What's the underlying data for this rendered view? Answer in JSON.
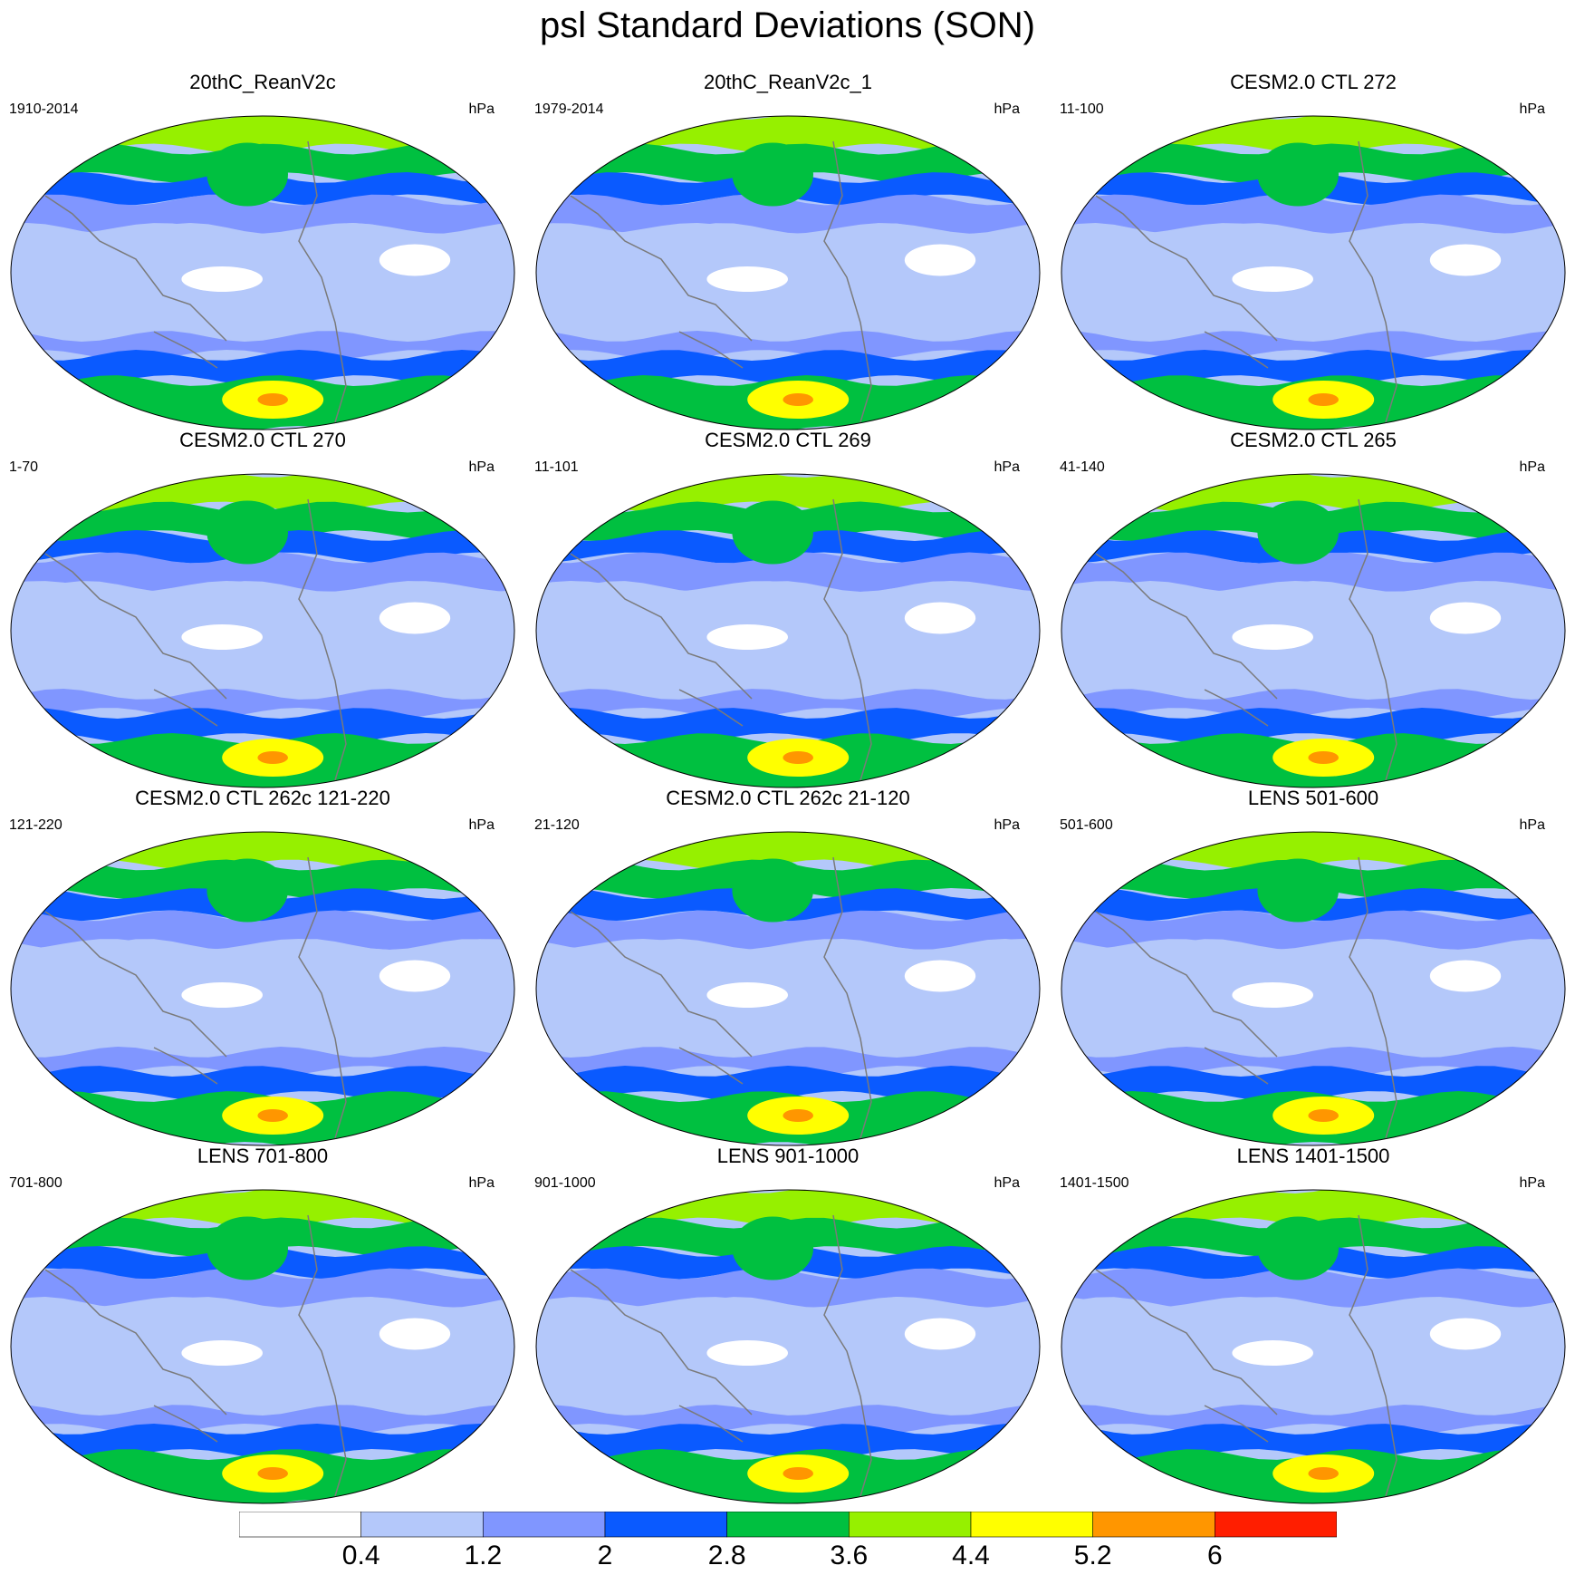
{
  "title": "psl Standard Deviations (SON)",
  "panels": [
    {
      "title": "20thC_ReanV2c",
      "period": "1910-2014",
      "units": "hPa"
    },
    {
      "title": "20thC_ReanV2c_1",
      "period": "1979-2014",
      "units": "hPa"
    },
    {
      "title": "CESM2.0 CTL 272",
      "period": "11-100",
      "units": "hPa"
    },
    {
      "title": "CESM2.0 CTL 270",
      "period": "1-70",
      "units": "hPa"
    },
    {
      "title": "CESM2.0 CTL 269",
      "period": "11-101",
      "units": "hPa"
    },
    {
      "title": "CESM2.0 CTL 265",
      "period": "41-140",
      "units": "hPa"
    },
    {
      "title": "CESM2.0 CTL 262c 121-220",
      "period": "121-220",
      "units": "hPa"
    },
    {
      "title": "CESM2.0 CTL 262c 21-120",
      "period": "21-120",
      "units": "hPa"
    },
    {
      "title": "LENS 501-600",
      "period": "501-600",
      "units": "hPa"
    },
    {
      "title": "LENS 701-800",
      "period": "701-800",
      "units": "hPa"
    },
    {
      "title": "LENS 901-1000",
      "period": "901-1000",
      "units": "hPa"
    },
    {
      "title": "LENS 1401-1500",
      "period": "1401-1500",
      "units": "hPa"
    }
  ],
  "colorbar": {
    "colors": [
      "#ffffff",
      "#b4c8fa",
      "#8096ff",
      "#0a5aff",
      "#00c040",
      "#96f000",
      "#ffff00",
      "#ff9600",
      "#ff1e00"
    ],
    "labels": [
      "0.4",
      "1.2",
      "2",
      "2.8",
      "3.6",
      "4.4",
      "5.2",
      "6"
    ]
  }
}
